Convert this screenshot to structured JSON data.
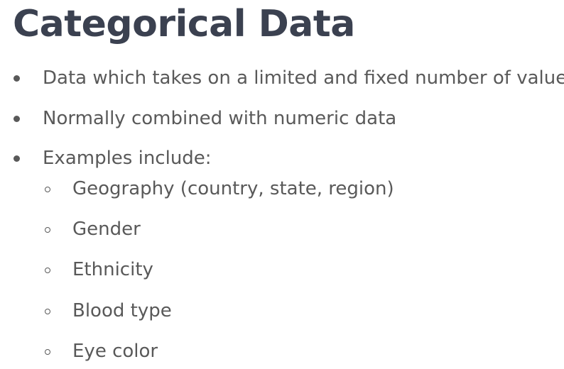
{
  "slide": {
    "title": "Categorical Data",
    "bullets": [
      {
        "text": "Data which takes on a limited and fixed number of values"
      },
      {
        "text": "Normally combined with numeric data"
      },
      {
        "text": "Examples include:",
        "subitems": [
          {
            "text": "Geography (country, state, region)"
          },
          {
            "text": "Gender"
          },
          {
            "text": "Ethnicity"
          },
          {
            "text": "Blood type"
          },
          {
            "text": "Eye color"
          }
        ]
      }
    ]
  },
  "colors": {
    "title": "#3b4150",
    "body_text": "#595959",
    "background": "#ffffff"
  },
  "icons": {
    "level1_bullet": "filled-disc-bullet",
    "level2_bullet": "hollow-circle-bullet"
  }
}
